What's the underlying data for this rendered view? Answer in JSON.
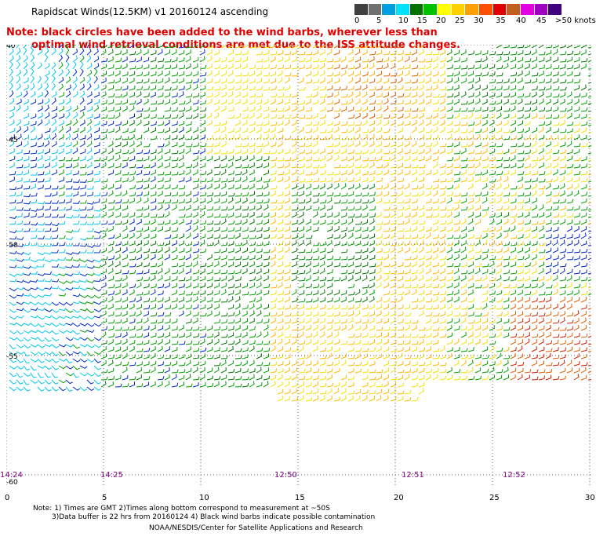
{
  "header": {
    "title": "Rapidscat Winds(12.5KM) v1 20160124 ascending",
    "note_line1": "Note: black circles have been added to the wind barbs, wherever less than",
    "note_line2": "optimal wind retrieval conditions are met due to the ISS attitude changes."
  },
  "legend": {
    "colors": [
      "#404040",
      "#707070",
      "#00a0e0",
      "#00e0ff",
      "#007000",
      "#00c000",
      "#ffff00",
      "#ffd000",
      "#ffa000",
      "#ff5000",
      "#e00000",
      "#c06020",
      "#e000e0",
      "#a000c0",
      "#400080"
    ],
    "tick_labels": [
      "0",
      "5",
      "10",
      "15",
      "20",
      "25",
      "30",
      "35",
      "40",
      "45",
      ">50 knots"
    ]
  },
  "map": {
    "lat_labels": [
      "40",
      "-45",
      "-50",
      "-55",
      "-60"
    ],
    "lon_tick_labels": [
      "0",
      "5",
      "10",
      "15",
      "20",
      "25",
      "30"
    ],
    "time_labels": [
      "14:24",
      "14:25",
      "12:50",
      "12:51",
      "12:52"
    ]
  },
  "footer": {
    "line1": "Note: 1) Times are GMT 2)Times along bottom correspond to measurement at ~50S",
    "line2": "3)Data buffer is 22 hrs from 20160124 4) Black wind barbs indicate possible contamination",
    "credit": "NOAA/NESDIS/Center for Satellite Applications and Research"
  }
}
